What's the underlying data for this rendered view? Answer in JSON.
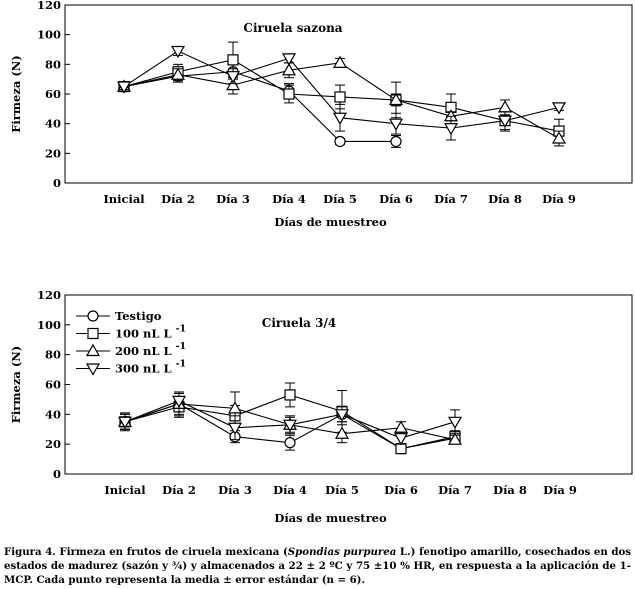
{
  "chart_data": [
    {
      "type": "line",
      "title": "Ciruela sazona",
      "xlabel": "Días de muestreo",
      "ylabel": "Firmeza (N)",
      "ylim": [
        0,
        120
      ],
      "yticks": [
        0,
        20,
        40,
        60,
        80,
        100,
        120
      ],
      "categories": [
        "Inicial",
        "Día 2",
        "Día 3",
        "Día 4",
        "Día 5",
        "Día 6",
        "Día 7",
        "Día 8",
        "Día 9"
      ],
      "legend": "none",
      "series": [
        {
          "name": "Testigo",
          "marker": "circle",
          "values": [
            65,
            72,
            75,
            62,
            28,
            28,
            null,
            null,
            null
          ],
          "errors": [
            2,
            4,
            5,
            5,
            2,
            4,
            null,
            null,
            null
          ]
        },
        {
          "name": "100 nL L -1",
          "marker": "square",
          "values": [
            65,
            75,
            83,
            60,
            58,
            56,
            51,
            42,
            35
          ],
          "errors": [
            2,
            5,
            12,
            6,
            8,
            12,
            9,
            7,
            8
          ]
        },
        {
          "name": "200 nL L -1",
          "marker": "triangle-up",
          "values": [
            65,
            73,
            66,
            76,
            81,
            56,
            45,
            51,
            30
          ],
          "errors": [
            2,
            4,
            6,
            5,
            3,
            4,
            3,
            5,
            5
          ]
        },
        {
          "name": "300 nL L -1",
          "marker": "triangle-down",
          "values": [
            65,
            89,
            72,
            84,
            44,
            40,
            37,
            42,
            51
          ],
          "errors": [
            2,
            3,
            5,
            3,
            9,
            7,
            8,
            6,
            2
          ]
        }
      ]
    },
    {
      "type": "line",
      "title": "Ciruela 3/4",
      "xlabel": "Días de muestreo",
      "ylabel": "Firmeza (N)",
      "ylim": [
        0,
        120
      ],
      "yticks": [
        0,
        20,
        40,
        60,
        80,
        100,
        120
      ],
      "categories": [
        "Inicial",
        "Día 2",
        "Día 3",
        "Día 4",
        "Día 5",
        "Día 6",
        "Día 7",
        "Día 8",
        "Día 9"
      ],
      "legend": "top-left",
      "series": [
        {
          "name": "Testigo",
          "marker": "circle",
          "values": [
            35,
            47,
            25,
            21,
            40,
            17,
            24,
            null,
            null
          ],
          "errors": [
            6,
            7,
            4,
            5,
            5,
            2,
            3,
            null,
            null
          ]
        },
        {
          "name": "100 nL L -1",
          "marker": "square",
          "values": [
            35,
            45,
            39,
            53,
            42,
            17,
            25,
            null,
            null
          ],
          "errors": [
            5,
            7,
            7,
            8,
            14,
            2,
            4,
            null,
            null
          ]
        },
        {
          "name": "200 nL L -1",
          "marker": "triangle-up",
          "values": [
            35,
            47,
            44,
            33,
            27,
            31,
            23,
            null,
            null
          ],
          "errors": [
            5,
            8,
            11,
            5,
            6,
            4,
            3,
            null,
            null
          ]
        },
        {
          "name": "300 nL L -1",
          "marker": "triangle-down",
          "values": [
            35,
            49,
            31,
            33,
            40,
            24,
            35,
            null,
            null
          ],
          "errors": [
            5,
            5,
            8,
            6,
            5,
            4,
            8,
            null,
            null
          ]
        }
      ]
    }
  ],
  "caption": {
    "before_species": "Figura 4. Firmeza en frutos de ciruela mexicana (",
    "species": "Spondias purpurea",
    "after_species": " L.) fenotipo amarillo, cosechados en dos estados de madurez (sazón y ¾) y almacenados a 22 ± 2 ºC y 75 ±10 % HR, en respuesta a la aplicación de 1-MCP. Cada punto representa la media ± error estándar (n = 6)."
  }
}
